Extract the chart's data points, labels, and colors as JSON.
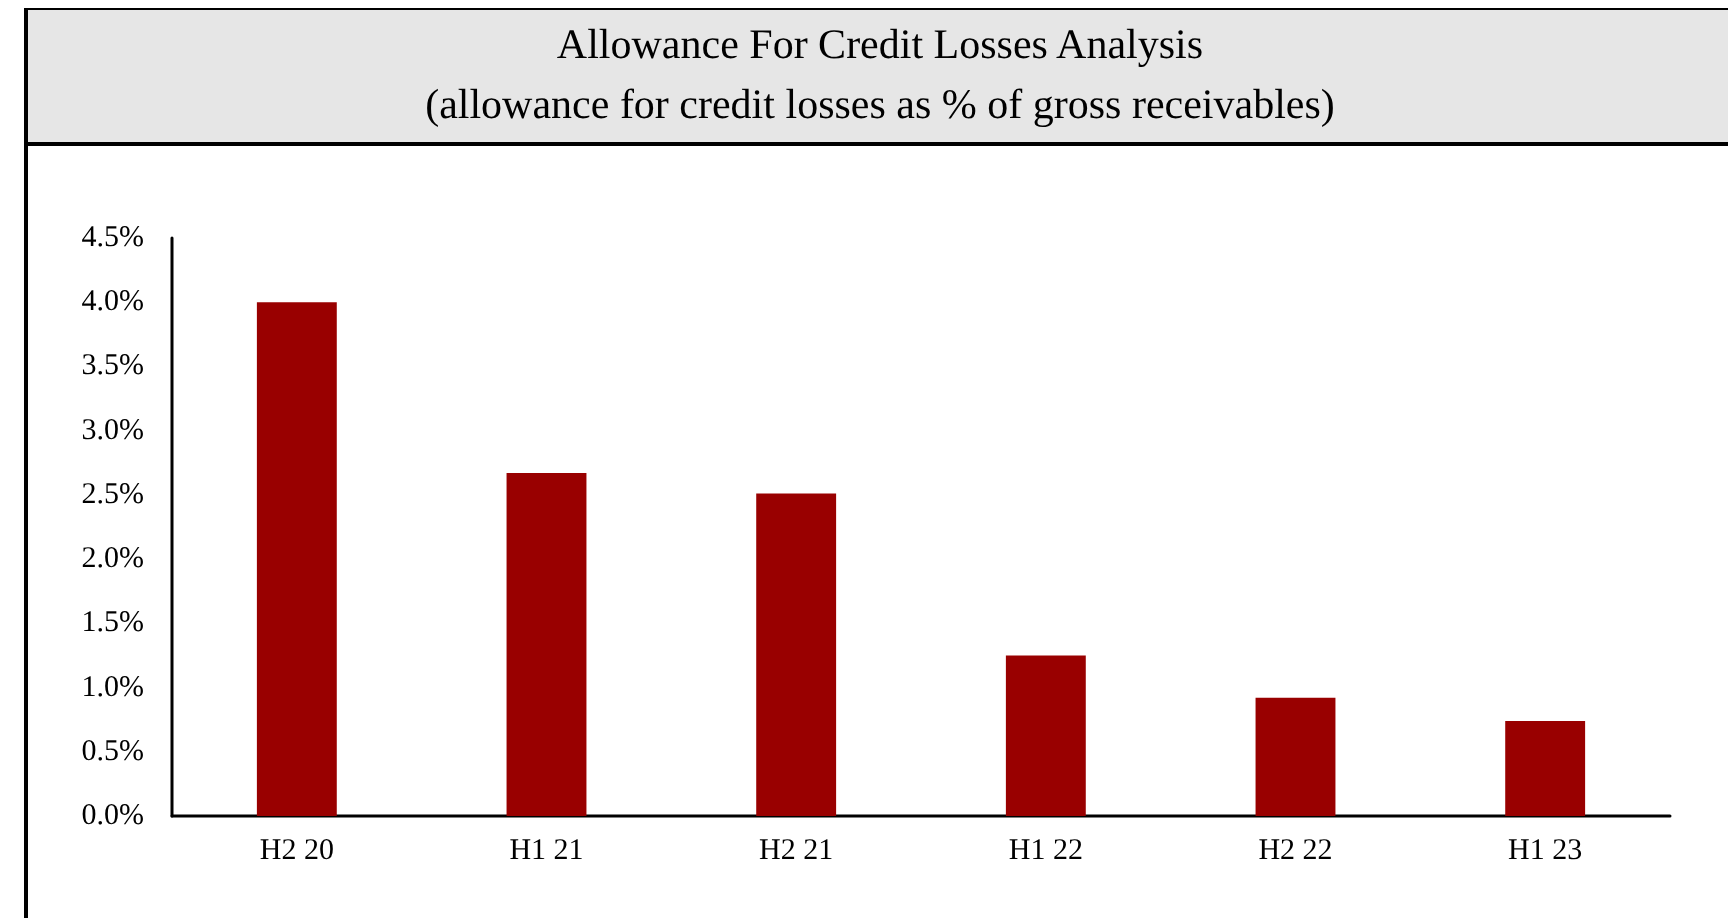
{
  "chart_data": {
    "type": "bar",
    "title": "Allowance For Credit Losses Analysis",
    "subtitle": "(allowance for credit losses as % of gross receivables)",
    "categories": [
      "H2 20",
      "H1 21",
      "H2 21",
      "H1 22",
      "H2 22",
      "H1 23"
    ],
    "series": [
      {
        "color": "#990000",
        "values": [
          4.0,
          2.67,
          2.51,
          1.25,
          0.92,
          0.74
        ]
      }
    ],
    "ylim": [
      0,
      4.5
    ],
    "yticks": [
      {
        "value": 0,
        "label": "0.0%"
      },
      {
        "value": 0.5,
        "label": "0.5%"
      },
      {
        "value": 1,
        "label": "1.0%"
      },
      {
        "value": 1.5,
        "label": "1.5%"
      },
      {
        "value": 2,
        "label": "2.0%"
      },
      {
        "value": 2.5,
        "label": "2.5%"
      },
      {
        "value": 3,
        "label": "3.0%"
      },
      {
        "value": 3.5,
        "label": "3.5%"
      },
      {
        "value": 4,
        "label": "4.0%"
      },
      {
        "value": 4.5,
        "label": "4.5%"
      }
    ],
    "grid": false
  }
}
